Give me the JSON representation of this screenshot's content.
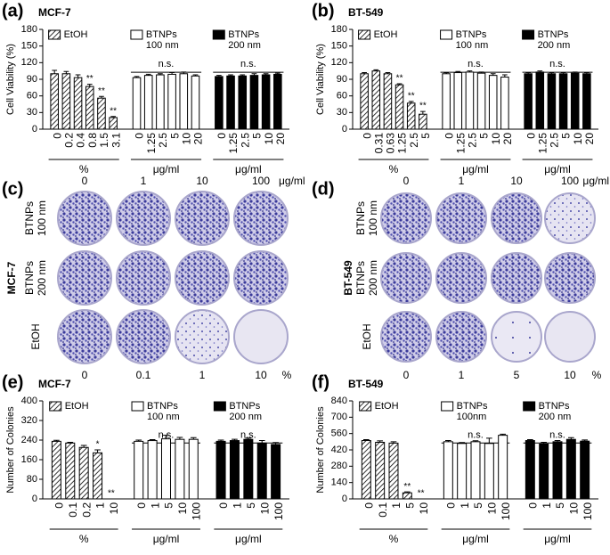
{
  "chart_data": [
    {
      "type": "bar",
      "panel": "(a)",
      "cell_line": "MCF-7",
      "y_label": "Cell Viability (%)",
      "ylim": [
        0,
        180
      ],
      "yticks": [
        0,
        30,
        60,
        90,
        120,
        150,
        180
      ],
      "groups": [
        {
          "name": "EtOH",
          "fill": "hatched",
          "unit": "%",
          "categories": [
            "0",
            "0.2",
            "0.4",
            "0.8",
            "1.5",
            "3.1"
          ],
          "values": [
            100,
            100,
            93,
            77,
            56,
            21
          ],
          "errors": [
            6,
            4,
            5,
            4,
            3,
            2
          ],
          "significance": [
            null,
            null,
            null,
            "**",
            "**",
            "**"
          ]
        },
        {
          "name": "BTNPs 100 nm",
          "fill": "#ffffff",
          "unit": "μg/ml",
          "note": "n.s.",
          "categories": [
            "0",
            "1.25",
            "2.5",
            "5",
            "10",
            "20"
          ],
          "values": [
            93,
            97,
            98,
            99,
            100,
            96
          ],
          "errors": [
            2,
            2,
            2,
            3,
            3,
            2
          ]
        },
        {
          "name": "BTNPs 200 nm",
          "fill": "#000000",
          "unit": "μg/ml",
          "note": "n.s.",
          "categories": [
            "0",
            "1.25",
            "2.5",
            "5",
            "10",
            "20"
          ],
          "values": [
            95,
            96,
            96,
            97,
            98,
            99
          ],
          "errors": [
            2,
            2,
            2,
            3,
            2,
            2
          ]
        }
      ]
    },
    {
      "type": "bar",
      "panel": "(b)",
      "cell_line": "BT-549",
      "y_label": "Cell Viability (%)",
      "ylim": [
        0,
        180
      ],
      "yticks": [
        0,
        30,
        60,
        90,
        120,
        150,
        180
      ],
      "groups": [
        {
          "name": "EtOH",
          "fill": "hatched",
          "unit": "%",
          "categories": [
            "0",
            "0.31",
            "0.63",
            "1.25",
            "2.5",
            "5"
          ],
          "values": [
            100,
            105,
            100,
            80,
            47,
            27
          ],
          "errors": [
            2,
            2,
            2,
            2,
            3,
            5
          ],
          "significance": [
            null,
            null,
            null,
            "**",
            "**",
            "**"
          ]
        },
        {
          "name": "BTNPs 100 nm",
          "fill": "#ffffff",
          "unit": "μg/ml",
          "note": "n.s.",
          "categories": [
            "0",
            "1.25",
            "2.5",
            "5",
            "10",
            "20"
          ],
          "values": [
            100,
            102,
            103,
            101,
            97,
            94
          ],
          "errors": [
            2,
            2,
            2,
            2,
            3,
            4
          ]
        },
        {
          "name": "BTNPs 200 nm",
          "fill": "#000000",
          "unit": "μg/ml",
          "note": "n.s.",
          "categories": [
            "0",
            "1.25",
            "2.5",
            "5",
            "10",
            "20"
          ],
          "values": [
            100,
            103,
            100,
            100,
            101,
            100
          ],
          "errors": [
            2,
            2,
            2,
            2,
            2,
            2
          ]
        }
      ]
    },
    {
      "type": "bar",
      "panel": "(e)",
      "cell_line": "MCF-7",
      "y_label": "Number of Colonies",
      "ylim": [
        0,
        400
      ],
      "yticks": [
        0,
        80,
        160,
        240,
        320,
        400
      ],
      "groups": [
        {
          "name": "EtOH",
          "fill": "hatched",
          "unit": "%",
          "categories": [
            "0",
            "0.1",
            "0.2",
            "1",
            "10"
          ],
          "values": [
            235,
            228,
            210,
            188,
            0
          ],
          "errors": [
            4,
            3,
            8,
            12,
            0
          ],
          "significance": [
            null,
            null,
            null,
            "*",
            "**"
          ]
        },
        {
          "name": "BTNPs 100 nm",
          "fill": "#ffffff",
          "unit": "μg/ml",
          "note": "n.s.",
          "categories": [
            "0",
            "1",
            "5",
            "10",
            "100"
          ],
          "values": [
            235,
            238,
            245,
            243,
            243
          ],
          "errors": [
            5,
            4,
            15,
            8,
            7
          ]
        },
        {
          "name": "BTNPs 200 nm",
          "fill": "#000000",
          "unit": "μg/ml",
          "note": "n.s.",
          "categories": [
            "0",
            "1",
            "5",
            "10",
            "100"
          ],
          "values": [
            235,
            238,
            243,
            228,
            222
          ],
          "errors": [
            5,
            5,
            5,
            10,
            8
          ]
        }
      ]
    },
    {
      "type": "bar",
      "panel": "(f)",
      "cell_line": "BT-549",
      "y_label": "Number of Colonies",
      "ylim": [
        0,
        840
      ],
      "yticks": [
        0,
        140,
        280,
        420,
        560,
        700,
        840
      ],
      "groups": [
        {
          "name": "EtOH",
          "fill": "hatched",
          "unit": "%",
          "categories": [
            "0",
            "0.1",
            "1",
            "5",
            "10"
          ],
          "values": [
            500,
            485,
            478,
            52,
            0
          ],
          "errors": [
            8,
            12,
            12,
            8,
            0
          ],
          "significance": [
            null,
            null,
            null,
            "**",
            "**"
          ]
        },
        {
          "name": "BTNPs 100nm",
          "fill": "#ffffff",
          "unit": "μg/ml",
          "note": "n.s.",
          "categories": [
            "0",
            "1",
            "5",
            "10",
            "100"
          ],
          "values": [
            490,
            475,
            490,
            475,
            545
          ],
          "errors": [
            10,
            8,
            8,
            45,
            10
          ]
        },
        {
          "name": "BTNPs 200 nm",
          "fill": "#000000",
          "unit": "μg/ml",
          "note": "n.s.",
          "categories": [
            "0",
            "1",
            "5",
            "10",
            "100"
          ],
          "values": [
            500,
            470,
            490,
            510,
            495
          ],
          "errors": [
            8,
            15,
            10,
            15,
            10
          ]
        }
      ]
    }
  ],
  "colony_panels": [
    {
      "panel": "(c)",
      "cell_line": "MCF-7",
      "top_labels": [
        "0",
        "1",
        "10",
        "100"
      ],
      "top_unit": "μg/ml",
      "rows": [
        "BTNPs 100 nm",
        "BTNPs 200 nm",
        "EtOH"
      ],
      "bottom_labels": [
        "0",
        "0.1",
        "1",
        "10"
      ],
      "bottom_unit": "%"
    },
    {
      "panel": "(d)",
      "cell_line": "BT-549",
      "top_labels": [
        "0",
        "1",
        "10",
        "100"
      ],
      "top_unit": "μg/ml",
      "rows": [
        "BTNPs 100 nm",
        "BTNPs 200 nm",
        "EtOH"
      ],
      "bottom_labels": [
        "0",
        "1",
        "5",
        "10"
      ],
      "bottom_unit": "%"
    }
  ]
}
